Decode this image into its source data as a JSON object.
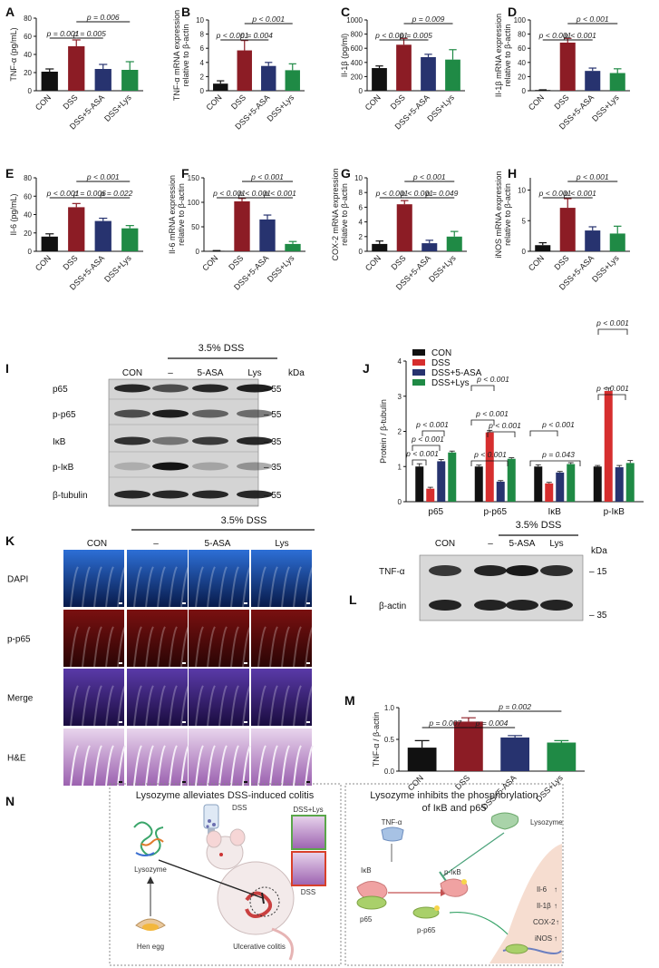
{
  "panels": {
    "A": {
      "letter": "A",
      "ylabel": [
        "TNF-α (pg/mL)"
      ],
      "yticks": [
        "0",
        "20",
        "40",
        "60",
        "80"
      ],
      "ymax": 80,
      "values": [
        21,
        49,
        24,
        23
      ],
      "errors": [
        3,
        7,
        5,
        9
      ],
      "pvalues": [
        {
          "text": "p = 0.001",
          "a": 0,
          "b": 1,
          "level": 1
        },
        {
          "text": "p = 0.005",
          "a": 1,
          "b": 2,
          "level": 1
        },
        {
          "text": "p = 0.006",
          "a": 1,
          "b": 3,
          "level": 2
        }
      ]
    },
    "B": {
      "letter": "B",
      "ylabel": [
        "TNF-α mRNA expression",
        "relative to β-actin"
      ],
      "yticks": [
        "0",
        "2",
        "4",
        "6",
        "8",
        "10"
      ],
      "ymax": 10,
      "values": [
        1,
        5.7,
        3.5,
        2.9
      ],
      "errors": [
        0.4,
        1.4,
        0.5,
        0.9
      ],
      "pvalues": [
        {
          "text": "p < 0.001",
          "a": 0,
          "b": 1,
          "level": 1
        },
        {
          "text": "p = 0.004",
          "a": 1,
          "b": 2,
          "level": 1
        },
        {
          "text": "p < 0.001",
          "a": 1,
          "b": 3,
          "level": 2
        }
      ]
    },
    "C": {
      "letter": "C",
      "ylabel": [
        "Il-1β (pg/ml)"
      ],
      "yticks": [
        "0",
        "200",
        "400",
        "600",
        "800",
        "1000"
      ],
      "ymax": 1000,
      "values": [
        320,
        650,
        475,
        440
      ],
      "errors": [
        30,
        90,
        40,
        140
      ],
      "pvalues": [
        {
          "text": "p < 0.001",
          "a": 0,
          "b": 1,
          "level": 1
        },
        {
          "text": "p = 0.005",
          "a": 1,
          "b": 2,
          "level": 1
        },
        {
          "text": "p = 0.009",
          "a": 1,
          "b": 3,
          "level": 2
        }
      ]
    },
    "D": {
      "letter": "D",
      "ylabel": [
        "Il-1β mRNA expression",
        "relative to β-actin"
      ],
      "yticks": [
        "0",
        "20",
        "40",
        "60",
        "80",
        "100"
      ],
      "ymax": 100,
      "values": [
        1,
        68,
        28,
        25
      ],
      "errors": [
        0.3,
        6,
        4,
        6
      ],
      "pvalues": [
        {
          "text": "p < 0.001",
          "a": 0,
          "b": 1,
          "level": 1
        },
        {
          "text": "p < 0.001",
          "a": 1,
          "b": 2,
          "level": 1
        },
        {
          "text": "p < 0.001",
          "a": 1,
          "b": 3,
          "level": 2
        }
      ]
    },
    "E": {
      "letter": "E",
      "ylabel": [
        "Il-6 (pg/mL)"
      ],
      "yticks": [
        "0",
        "20",
        "40",
        "60",
        "80"
      ],
      "ymax": 80,
      "values": [
        16,
        48,
        33,
        25
      ],
      "errors": [
        3,
        4,
        3,
        3
      ],
      "pvalues": [
        {
          "text": "p < 0.001",
          "a": 0,
          "b": 1,
          "level": 1
        },
        {
          "text": "p = 0.006",
          "a": 1,
          "b": 2,
          "level": 1
        },
        {
          "text": "p = 0.022",
          "a": 2,
          "b": 3,
          "level": 1
        },
        {
          "text": "p < 0.001",
          "a": 1,
          "b": 3,
          "level": 2
        }
      ]
    },
    "F": {
      "letter": "F",
      "ylabel": [
        "Il-6 mRNA expression",
        "relative to β-actin"
      ],
      "yticks": [
        "0",
        "50",
        "100",
        "150"
      ],
      "ymax": 150,
      "values": [
        1,
        102,
        65,
        15
      ],
      "errors": [
        0.5,
        6,
        9,
        5
      ],
      "pvalues": [
        {
          "text": "p < 0.001",
          "a": 0,
          "b": 1,
          "level": 1
        },
        {
          "text": "p < 0.001",
          "a": 1,
          "b": 2,
          "level": 1
        },
        {
          "text": "p < 0.001",
          "a": 2,
          "b": 3,
          "level": 1
        },
        {
          "text": "p < 0.001",
          "a": 1,
          "b": 3,
          "level": 2
        }
      ]
    },
    "G": {
      "letter": "G",
      "ylabel": [
        "COX-2 mRNA expression",
        "relative to β-actin"
      ],
      "yticks": [
        "0",
        "2",
        "4",
        "6",
        "8",
        "10"
      ],
      "ymax": 10,
      "values": [
        1,
        6.4,
        1.1,
        2
      ],
      "errors": [
        0.4,
        0.5,
        0.4,
        0.7
      ],
      "pvalues": [
        {
          "text": "p < 0.001",
          "a": 0,
          "b": 1,
          "level": 1
        },
        {
          "text": "p < 0.001",
          "a": 1,
          "b": 2,
          "level": 1
        },
        {
          "text": "p = 0.049",
          "a": 2,
          "b": 3,
          "level": 1
        },
        {
          "text": "p < 0.001",
          "a": 1,
          "b": 3,
          "level": 2
        }
      ]
    },
    "H": {
      "letter": "H",
      "ylabel": [
        "iNOS mRNA expression",
        "relative to β-actin"
      ],
      "yticks": [
        "0",
        "5",
        "10"
      ],
      "ymax": 12,
      "values": [
        1,
        7.1,
        3.4,
        2.9
      ],
      "errors": [
        0.4,
        1.5,
        0.6,
        1.2
      ],
      "pvalues": [
        {
          "text": "p < 0.001",
          "a": 0,
          "b": 1,
          "level": 1
        },
        {
          "text": "p < 0.001",
          "a": 1,
          "b": 2,
          "level": 1
        },
        {
          "text": "p < 0.001",
          "a": 1,
          "b": 3,
          "level": 2
        }
      ]
    },
    "M": {
      "letter": "M",
      "ylabel": [
        "TNF-α / β-actin"
      ],
      "yticks": [
        "0.0",
        "0.5",
        "1.0"
      ],
      "ymax": 1.0,
      "values": [
        0.37,
        0.78,
        0.53,
        0.45
      ],
      "errors": [
        0.11,
        0.06,
        0.03,
        0.03
      ],
      "pvalues": [
        {
          "text": "p = 0.007",
          "a": 0,
          "b": 1,
          "level": 1
        },
        {
          "text": "p = 0.004",
          "a": 1,
          "b": 2,
          "level": 1
        },
        {
          "text": "p = 0.002",
          "a": 1,
          "b": 3,
          "level": 2
        }
      ]
    }
  },
  "groups": [
    "CON",
    "DSS",
    "DSS+5-ASA",
    "DSS+Lys"
  ],
  "colors": [
    "#111111",
    "#8c1c25",
    "#27336f",
    "#1f8a45"
  ],
  "J": {
    "letter": "J",
    "ylabel": "Protein / β-tubulin",
    "yticks": [
      "0",
      "1",
      "2",
      "3",
      "4"
    ],
    "ymax": 4,
    "legend": [
      "CON",
      "DSS",
      "DSS+5-ASA",
      "DSS+Lys"
    ],
    "legend_colors": [
      "#111111",
      "#d62e2e",
      "#27336f",
      "#1f8a45"
    ],
    "categories": [
      "p65",
      "p-p65",
      "IκB",
      "p-IκB"
    ],
    "values": [
      [
        1.0,
        0.37,
        1.15,
        1.4
      ],
      [
        1.0,
        1.97,
        0.57,
        1.22
      ],
      [
        1.0,
        0.52,
        0.83,
        1.07
      ],
      [
        1.0,
        3.15,
        0.98,
        1.1
      ]
    ],
    "errors": [
      [
        0.08,
        0.04,
        0.05,
        0.04
      ],
      [
        0.04,
        0.06,
        0.03,
        0.03
      ],
      [
        0.05,
        0.03,
        0.03,
        0.04
      ],
      [
        0.03,
        0.08,
        0.05,
        0.07
      ]
    ],
    "pvalues": [
      "p < 0.001",
      "p < 0.001",
      "p < 0.001",
      "p < 0.001",
      "p < 0.001",
      "p < 0.001",
      "p < 0.001",
      "p < 0.001",
      "p = 0.043",
      "p < 0.001",
      "p < 0.001"
    ]
  },
  "I": {
    "letter": "I",
    "treatment": "3.5% DSS",
    "lanes": [
      "CON",
      "–",
      "5-ASA",
      "Lys"
    ],
    "kda_label": "kDa",
    "rows": [
      {
        "name": "p65",
        "kda": "55"
      },
      {
        "name": "p-p65",
        "kda": "55"
      },
      {
        "name": "IκB",
        "kda": "35"
      },
      {
        "name": "p-IκB",
        "kda": "35"
      },
      {
        "name": "β-tubulin",
        "kda": "55"
      }
    ]
  },
  "K": {
    "letter": "K",
    "treatment": "3.5% DSS",
    "columns": [
      "CON",
      "–",
      "5-ASA",
      "Lys"
    ],
    "rows": [
      "DAPI",
      "p-p65",
      "Merge",
      "H&E"
    ]
  },
  "L": {
    "letter": "L",
    "treatment": "3.5% DSS",
    "lanes": [
      "CON",
      "–",
      "5-ASA",
      "Lys"
    ],
    "kda_label": "kDa",
    "rows": [
      {
        "name": "TNF-α",
        "kda": "15"
      },
      {
        "name": "β-actin",
        "kda": "35"
      }
    ]
  },
  "N": {
    "letter": "N",
    "left_title": "Lysozyme alleviates DSS-induced colitis",
    "right_title": [
      "Lysozyme inhibits the phosphorylation",
      "of IκB and p65"
    ],
    "left_labels": {
      "dss": "DSS",
      "dss_lys": "DSS+Lys",
      "dss2": "DSS",
      "lysozyme": "Lysozyme",
      "hen_egg": "Hen egg",
      "uc": "Ulcerative colitis"
    },
    "right_labels": {
      "tnf": "TNF-α",
      "lysozyme": "Lysozyme",
      "ikb": "IκB",
      "p65": "p65",
      "pikb": "p-IκB",
      "pp65": "p-p65"
    },
    "genes": [
      "Il-6",
      "Il-1β",
      "COX-2",
      "iNOS"
    ]
  }
}
